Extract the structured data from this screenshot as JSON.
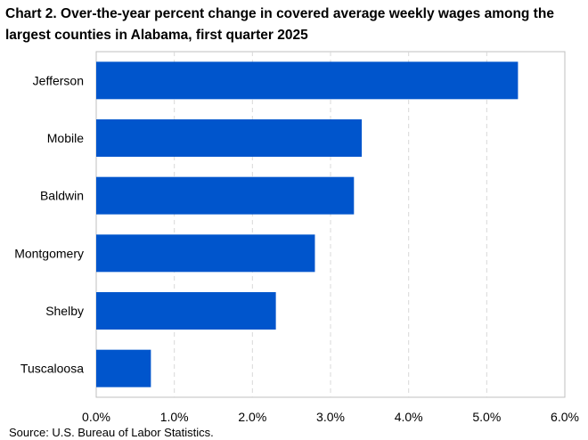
{
  "chart_data": {
    "type": "bar",
    "orientation": "horizontal",
    "title": "Chart 2. Over-the-year percent change in covered average weekly wages among the largest counties in Alabama, first quarter 2025",
    "categories": [
      "Jefferson",
      "Mobile",
      "Baldwin",
      "Montgomery",
      "Shelby",
      "Tuscaloosa"
    ],
    "values": [
      5.4,
      3.4,
      3.3,
      2.8,
      2.3,
      0.7
    ],
    "xlabel": "",
    "ylabel": "",
    "xlim": [
      0,
      6
    ],
    "ticks": [
      0,
      1,
      2,
      3,
      4,
      5,
      6
    ],
    "tick_labels": [
      "0.0%",
      "1.0%",
      "2.0%",
      "3.0%",
      "4.0%",
      "5.0%",
      "6.0%"
    ],
    "gridlines": "vertical-dashed",
    "legend": "none",
    "bar_color": "#0055CC",
    "grid_color": "#D9D9D9",
    "axis_color": "#BFBFBF"
  },
  "source": "Source: U.S. Bureau of Labor Statistics."
}
